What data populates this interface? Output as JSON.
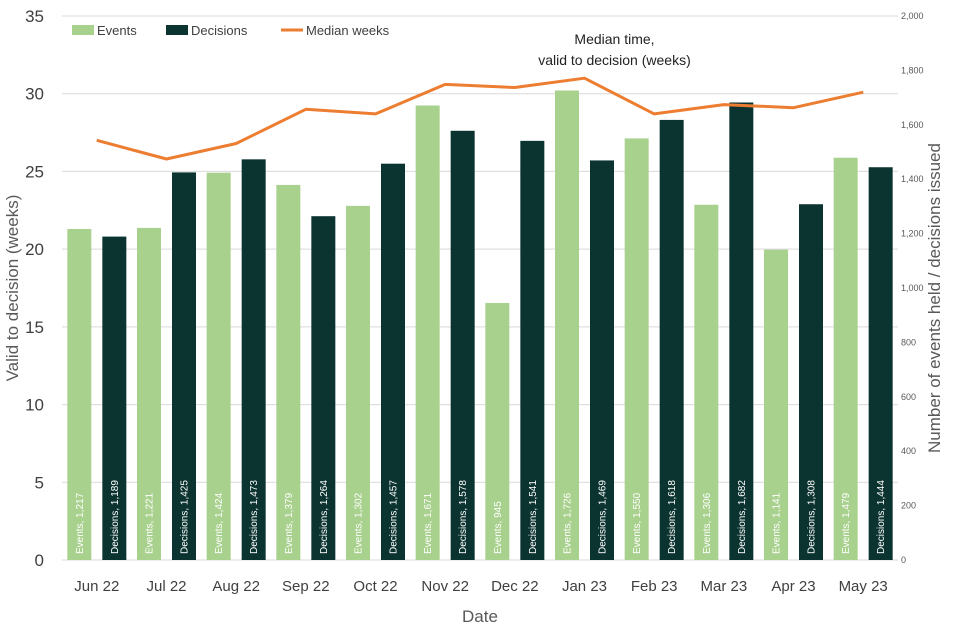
{
  "chart_data": {
    "type": "bar",
    "title": "",
    "xlabel": "Date",
    "ylabel_left": "Valid to decision (weeks)",
    "ylabel_right": "Number of events held / decisions issued",
    "ylim_left": [
      0,
      35
    ],
    "ylim_right": [
      0,
      2000
    ],
    "yticks_left": [
      "0",
      "5",
      "10",
      "15",
      "20",
      "25",
      "30",
      "35"
    ],
    "yticks_right": [
      "0",
      "200",
      "400",
      "600",
      "800",
      "1,000",
      "1,200",
      "1,400",
      "1,600",
      "1,800",
      "2,000"
    ],
    "categories": [
      "Jun 22",
      "Jul 22",
      "Aug 22",
      "Sep 22",
      "Oct 22",
      "Nov 22",
      "Dec 22",
      "Jan 23",
      "Feb 23",
      "Mar 23",
      "Apr 23",
      "May 23"
    ],
    "legend": [
      "Events",
      "Decisions",
      "Median weeks"
    ],
    "legend_position": "top-left",
    "series": [
      {
        "name": "Events",
        "axis": "right",
        "color": "#a9d18e",
        "values": [
          1217,
          1221,
          1424,
          1379,
          1302,
          1671,
          945,
          1726,
          1550,
          1306,
          1141,
          1479
        ],
        "labels": [
          "Events, 1,217",
          "Events, 1,221",
          "Events, 1,424",
          "Events, 1,379",
          "Events, 1,302",
          "Events, 1,671",
          "Events, 945",
          "Events, 1,726",
          "Events, 1,550",
          "Events, 1,306",
          "Events, 1,141",
          "Events, 1,479"
        ]
      },
      {
        "name": "Decisions",
        "axis": "right",
        "color": "#0b3330",
        "values": [
          1189,
          1425,
          1473,
          1264,
          1457,
          1578,
          1541,
          1469,
          1618,
          1682,
          1308,
          1444
        ],
        "labels": [
          "Decisions, 1,189",
          "Decisions, 1,425",
          "Decisions, 1,473",
          "Decisions, 1,264",
          "Decisions, 1,457",
          "Decisions, 1,578",
          "Decisions, 1,541",
          "Decisions, 1,469",
          "Decisions, 1,618",
          "Decisions, 1,682",
          "Decisions, 1,308",
          "Decisions, 1,444"
        ]
      },
      {
        "name": "Median weeks",
        "axis": "left",
        "type": "line",
        "color": "#ed7d31",
        "values": [
          27.0,
          25.8,
          26.8,
          29.0,
          28.7,
          30.6,
          30.4,
          31.0,
          28.7,
          29.3,
          29.1,
          30.1
        ]
      }
    ],
    "annotation": [
      "Median time,",
      "valid to decision (weeks)"
    ]
  }
}
